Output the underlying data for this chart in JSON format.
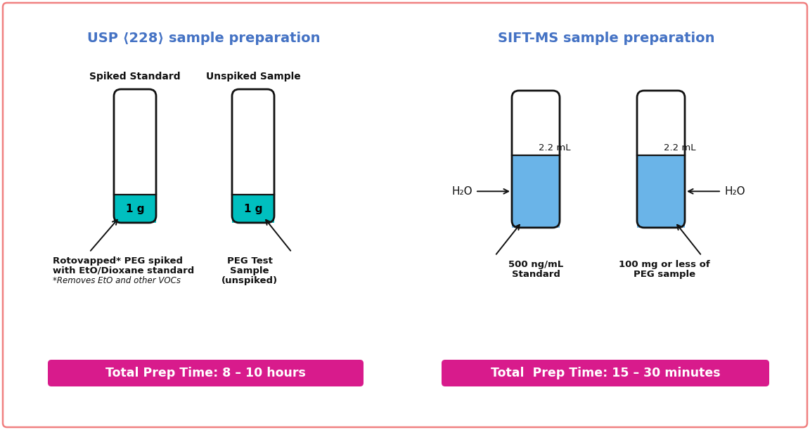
{
  "bg_color": "#ffffff",
  "border_color": "#f08080",
  "title_usp": "USP ⟨228⟩ sample preparation",
  "title_sift": "SIFT-MS sample preparation",
  "title_color": "#4472c4",
  "title_fontsize": 14,
  "label_spiked": "Spiked Standard",
  "label_unspiked": "Unspiked Sample",
  "label_fontsize": 10,
  "vial_fill_teal": "#00bfbf",
  "vial_fill_blue": "#6ab4e8",
  "vial_outline": "#111111",
  "vial_lw": 2.0,
  "usp_label1_line1": "Rotovapped* PEG spiked",
  "usp_label1_line2": "with EtO/Dioxane standard",
  "usp_label1_italic": "*Removes EtO and other VOCs",
  "usp_label2_line1": "PEG Test",
  "usp_label2_line2": "Sample",
  "usp_label2_line3": "(unspiked)",
  "usp_1g": "1 g",
  "sift_22ml": "2.2 mL",
  "sift_h2o": "H₂O",
  "sift_label1_line1": "500 ng/mL",
  "sift_label1_line2": "Standard",
  "sift_label2_line1": "100 mg or less of",
  "sift_label2_line2": "PEG sample",
  "banner_usp": "Total Prep Time: 8 – 10 hours",
  "banner_sift": "Total  Prep Time: 15 – 30 minutes",
  "banner_color": "#d81b8c",
  "banner_text_color": "#ffffff",
  "banner_fontsize": 12.5,
  "arrow_color": "#111111",
  "text_color": "#111111",
  "text_fontsize": 9.5
}
